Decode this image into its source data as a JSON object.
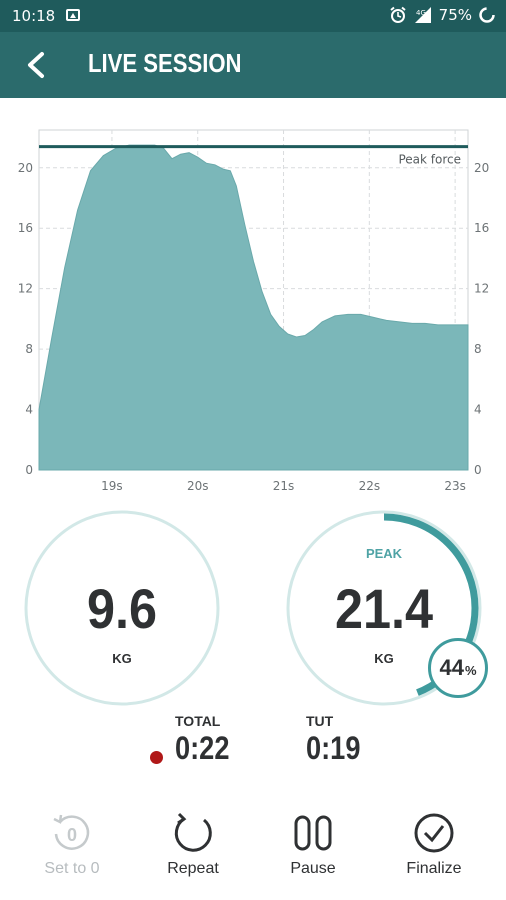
{
  "status_bar": {
    "time": "10:18",
    "battery": "75%"
  },
  "app_bar": {
    "title": "LIVE SESSION"
  },
  "chart_data": {
    "type": "area",
    "title": "",
    "xlabel": "",
    "ylabel": "",
    "x_tick_labels": [
      "19s",
      "20s",
      "21s",
      "22s",
      "23s"
    ],
    "x_ticks": [
      19,
      20,
      21,
      22,
      23
    ],
    "y_ticks": [
      0,
      4,
      8,
      12,
      16,
      20
    ],
    "xlim": [
      18.15,
      23.15
    ],
    "ylim": [
      0,
      22.5
    ],
    "annotation": {
      "label": "Peak force",
      "value": 21.4
    },
    "series": [
      {
        "color": "#7bb7b9",
        "x": [
          18.15,
          18.3,
          18.45,
          18.6,
          18.75,
          18.9,
          19.05,
          19.2,
          19.35,
          19.5,
          19.6,
          19.7,
          19.8,
          19.9,
          20.0,
          20.1,
          20.2,
          20.3,
          20.38,
          20.45,
          20.55,
          20.65,
          20.75,
          20.85,
          20.95,
          21.05,
          21.15,
          21.25,
          21.35,
          21.45,
          21.6,
          21.75,
          21.9,
          22.05,
          22.2,
          22.35,
          22.5,
          22.65,
          22.8,
          22.95,
          23.15
        ],
        "y": [
          4.0,
          8.8,
          13.4,
          17.2,
          19.8,
          20.8,
          21.3,
          21.5,
          21.5,
          21.5,
          21.3,
          20.6,
          20.9,
          21.0,
          20.7,
          20.3,
          20.2,
          19.9,
          19.8,
          18.8,
          16.2,
          13.8,
          11.8,
          10.3,
          9.5,
          9.0,
          8.8,
          8.9,
          9.3,
          9.8,
          10.2,
          10.3,
          10.3,
          10.1,
          9.9,
          9.8,
          9.7,
          9.7,
          9.6,
          9.6,
          9.6
        ]
      }
    ]
  },
  "gauges": {
    "current": {
      "value": "9.6",
      "unit": "KG"
    },
    "peak": {
      "label": "PEAK",
      "value": "21.4",
      "unit": "KG",
      "progress_percent": 44,
      "percent_value": "44",
      "percent_symbol": "%"
    }
  },
  "stats": {
    "total": {
      "label": "TOTAL",
      "value": "0:22"
    },
    "tut": {
      "label": "TUT",
      "value": "0:19"
    }
  },
  "actions": [
    {
      "label": "Set to 0",
      "icon": "reset-zero-icon",
      "enabled": false,
      "icon_text": "0"
    },
    {
      "label": "Repeat",
      "icon": "repeat-icon",
      "enabled": true
    },
    {
      "label": "Pause",
      "icon": "pause-icon",
      "enabled": true
    },
    {
      "label": "Finalize",
      "icon": "check-circle-icon",
      "enabled": true
    }
  ]
}
